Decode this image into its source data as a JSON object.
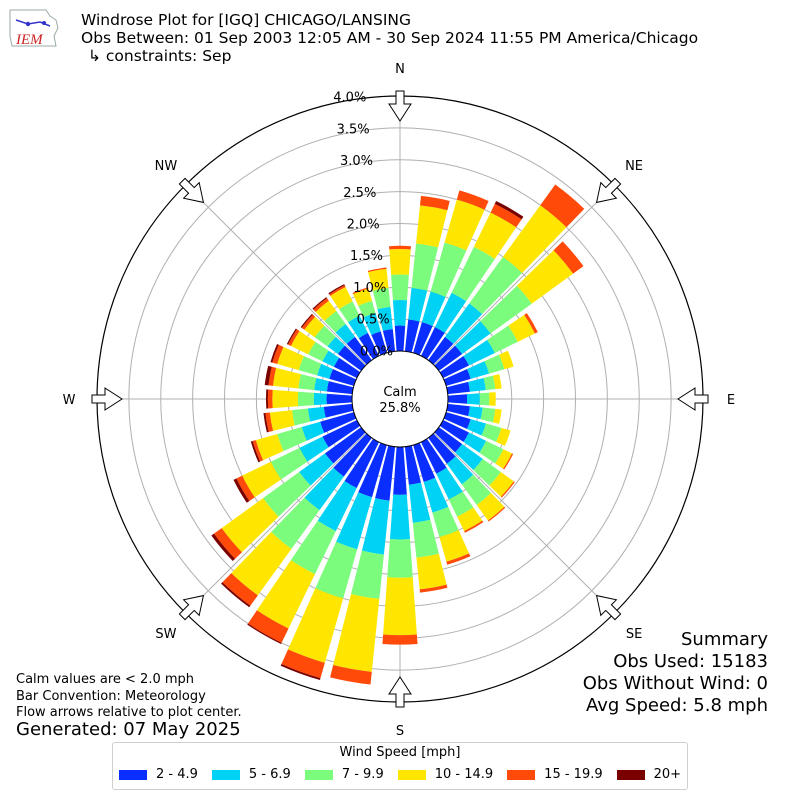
{
  "header": {
    "title": "Windrose Plot for [IGQ] CHICAGO/LANSING",
    "obs_between": "Obs Between: 01 Sep 2003 12:05 AM - 30 Sep 2024 11:55 PM America/Chicago",
    "constraints": "↳ constraints: Sep",
    "logo_text": "IEM"
  },
  "notes": {
    "calm_note": "Calm values are < 2.0 mph",
    "bar_convention": "Bar Convention: Meteorology",
    "flow_arrows": "Flow arrows relative to plot center.",
    "generated": "Generated: 07 May 2025"
  },
  "summary": {
    "title": "Summary",
    "obs_used": "Obs Used: 15183",
    "obs_without_wind": "Obs Without Wind: 0",
    "avg_speed": "Avg Speed: 5.8 mph"
  },
  "legend": {
    "title": "Wind Speed [mph]",
    "items": [
      {
        "label": "2 - 4.9",
        "color": "#0a2eff"
      },
      {
        "label": "5 - 6.9",
        "color": "#00d2f5"
      },
      {
        "label": "7 - 9.9",
        "color": "#7cfc7c"
      },
      {
        "label": "10 - 14.9",
        "color": "#ffe600"
      },
      {
        "label": "15 - 19.9",
        "color": "#ff4a0a"
      },
      {
        "label": "20+",
        "color": "#7a0000"
      }
    ]
  },
  "chart_data": {
    "type": "windrose",
    "title": "Windrose Plot for [IGQ] CHICAGO/LANSING",
    "calm_label": "Calm",
    "calm_value": "25.8%",
    "radial_ticks": [
      "0.0%",
      "0.5%",
      "1.0%",
      "1.5%",
      "2.0%",
      "2.5%",
      "3.0%",
      "3.5%",
      "4.0%"
    ],
    "radial_range": [
      0,
      4.0
    ],
    "compass_labels": [
      {
        "label": "N",
        "deg": 0
      },
      {
        "label": "NE",
        "deg": 45
      },
      {
        "label": "E",
        "deg": 90
      },
      {
        "label": "SE",
        "deg": 135
      },
      {
        "label": "S",
        "deg": 180
      },
      {
        "label": "SW",
        "deg": 225
      },
      {
        "label": "W",
        "deg": 270
      },
      {
        "label": "NW",
        "deg": 315
      }
    ],
    "speed_bins": [
      "2 - 4.9",
      "5 - 6.9",
      "7 - 9.9",
      "10 - 14.9",
      "15 - 19.9",
      "20+"
    ],
    "bin_colors": [
      "#0a2eff",
      "#00d2f5",
      "#7cfc7c",
      "#ffe600",
      "#ff4a0a",
      "#7a0000"
    ],
    "directions_deg": [
      0,
      10,
      20,
      30,
      40,
      50,
      60,
      70,
      80,
      90,
      100,
      110,
      120,
      130,
      140,
      150,
      160,
      170,
      180,
      190,
      200,
      210,
      220,
      230,
      240,
      250,
      260,
      270,
      280,
      290,
      300,
      310,
      320,
      330,
      340,
      350
    ],
    "cumulative_percent": [
      [
        0.4,
        0.8,
        1.2,
        1.6,
        1.65,
        1.65
      ],
      [
        0.5,
        1.0,
        1.7,
        2.3,
        2.45,
        2.45
      ],
      [
        0.5,
        1.0,
        1.8,
        2.5,
        2.65,
        2.65
      ],
      [
        0.5,
        1.1,
        1.9,
        2.5,
        2.65,
        2.7
      ],
      [
        0.45,
        1.1,
        2.0,
        3.0,
        3.4,
        3.4
      ],
      [
        0.45,
        1.0,
        1.8,
        2.6,
        2.8,
        2.8
      ],
      [
        0.45,
        0.9,
        1.3,
        1.6,
        1.65,
        1.65
      ],
      [
        0.4,
        0.7,
        0.95,
        1.1,
        1.1,
        1.1
      ],
      [
        0.35,
        0.6,
        0.75,
        0.85,
        0.85,
        0.85
      ],
      [
        0.3,
        0.5,
        0.65,
        0.75,
        0.75,
        0.75
      ],
      [
        0.35,
        0.55,
        0.75,
        0.85,
        0.85,
        0.85
      ],
      [
        0.4,
        0.65,
        0.9,
        1.05,
        1.05,
        1.05
      ],
      [
        0.45,
        0.75,
        1.05,
        1.2,
        1.22,
        1.22
      ],
      [
        0.45,
        0.85,
        1.2,
        1.45,
        1.47,
        1.47
      ],
      [
        0.5,
        0.9,
        1.3,
        1.6,
        1.62,
        1.62
      ],
      [
        0.55,
        1.0,
        1.3,
        1.55,
        1.58,
        1.58
      ],
      [
        0.6,
        1.1,
        1.5,
        1.9,
        1.95,
        1.95
      ],
      [
        0.6,
        1.2,
        1.75,
        2.25,
        2.3,
        2.3
      ],
      [
        0.75,
        1.45,
        2.05,
        2.95,
        3.1,
        3.1
      ],
      [
        0.85,
        1.7,
        2.4,
        3.55,
        3.75,
        3.75
      ],
      [
        0.85,
        1.7,
        2.5,
        3.55,
        3.8,
        3.83
      ],
      [
        0.8,
        1.55,
        2.3,
        3.25,
        3.5,
        3.52
      ],
      [
        0.75,
        1.4,
        2.15,
        3.05,
        3.25,
        3.28
      ],
      [
        0.7,
        1.2,
        1.9,
        2.7,
        2.85,
        2.9
      ],
      [
        0.6,
        1.0,
        1.5,
        2.0,
        2.1,
        2.15
      ],
      [
        0.55,
        0.85,
        1.25,
        1.6,
        1.65,
        1.68
      ],
      [
        0.45,
        0.7,
        0.95,
        1.3,
        1.37,
        1.4
      ],
      [
        0.4,
        0.6,
        0.85,
        1.25,
        1.32,
        1.35
      ],
      [
        0.4,
        0.6,
        0.85,
        1.25,
        1.32,
        1.38
      ],
      [
        0.4,
        0.6,
        0.9,
        1.25,
        1.33,
        1.36
      ],
      [
        0.4,
        0.6,
        0.85,
        1.15,
        1.2,
        1.22
      ],
      [
        0.45,
        0.65,
        0.9,
        1.1,
        1.15,
        1.17
      ],
      [
        0.45,
        0.7,
        0.95,
        1.15,
        1.2,
        1.22
      ],
      [
        0.4,
        0.7,
        0.95,
        1.2,
        1.23,
        1.25
      ],
      [
        0.35,
        0.65,
        0.85,
        1.05,
        1.07,
        1.07
      ],
      [
        0.35,
        0.7,
        1.0,
        1.3,
        1.32,
        1.32
      ]
    ]
  }
}
